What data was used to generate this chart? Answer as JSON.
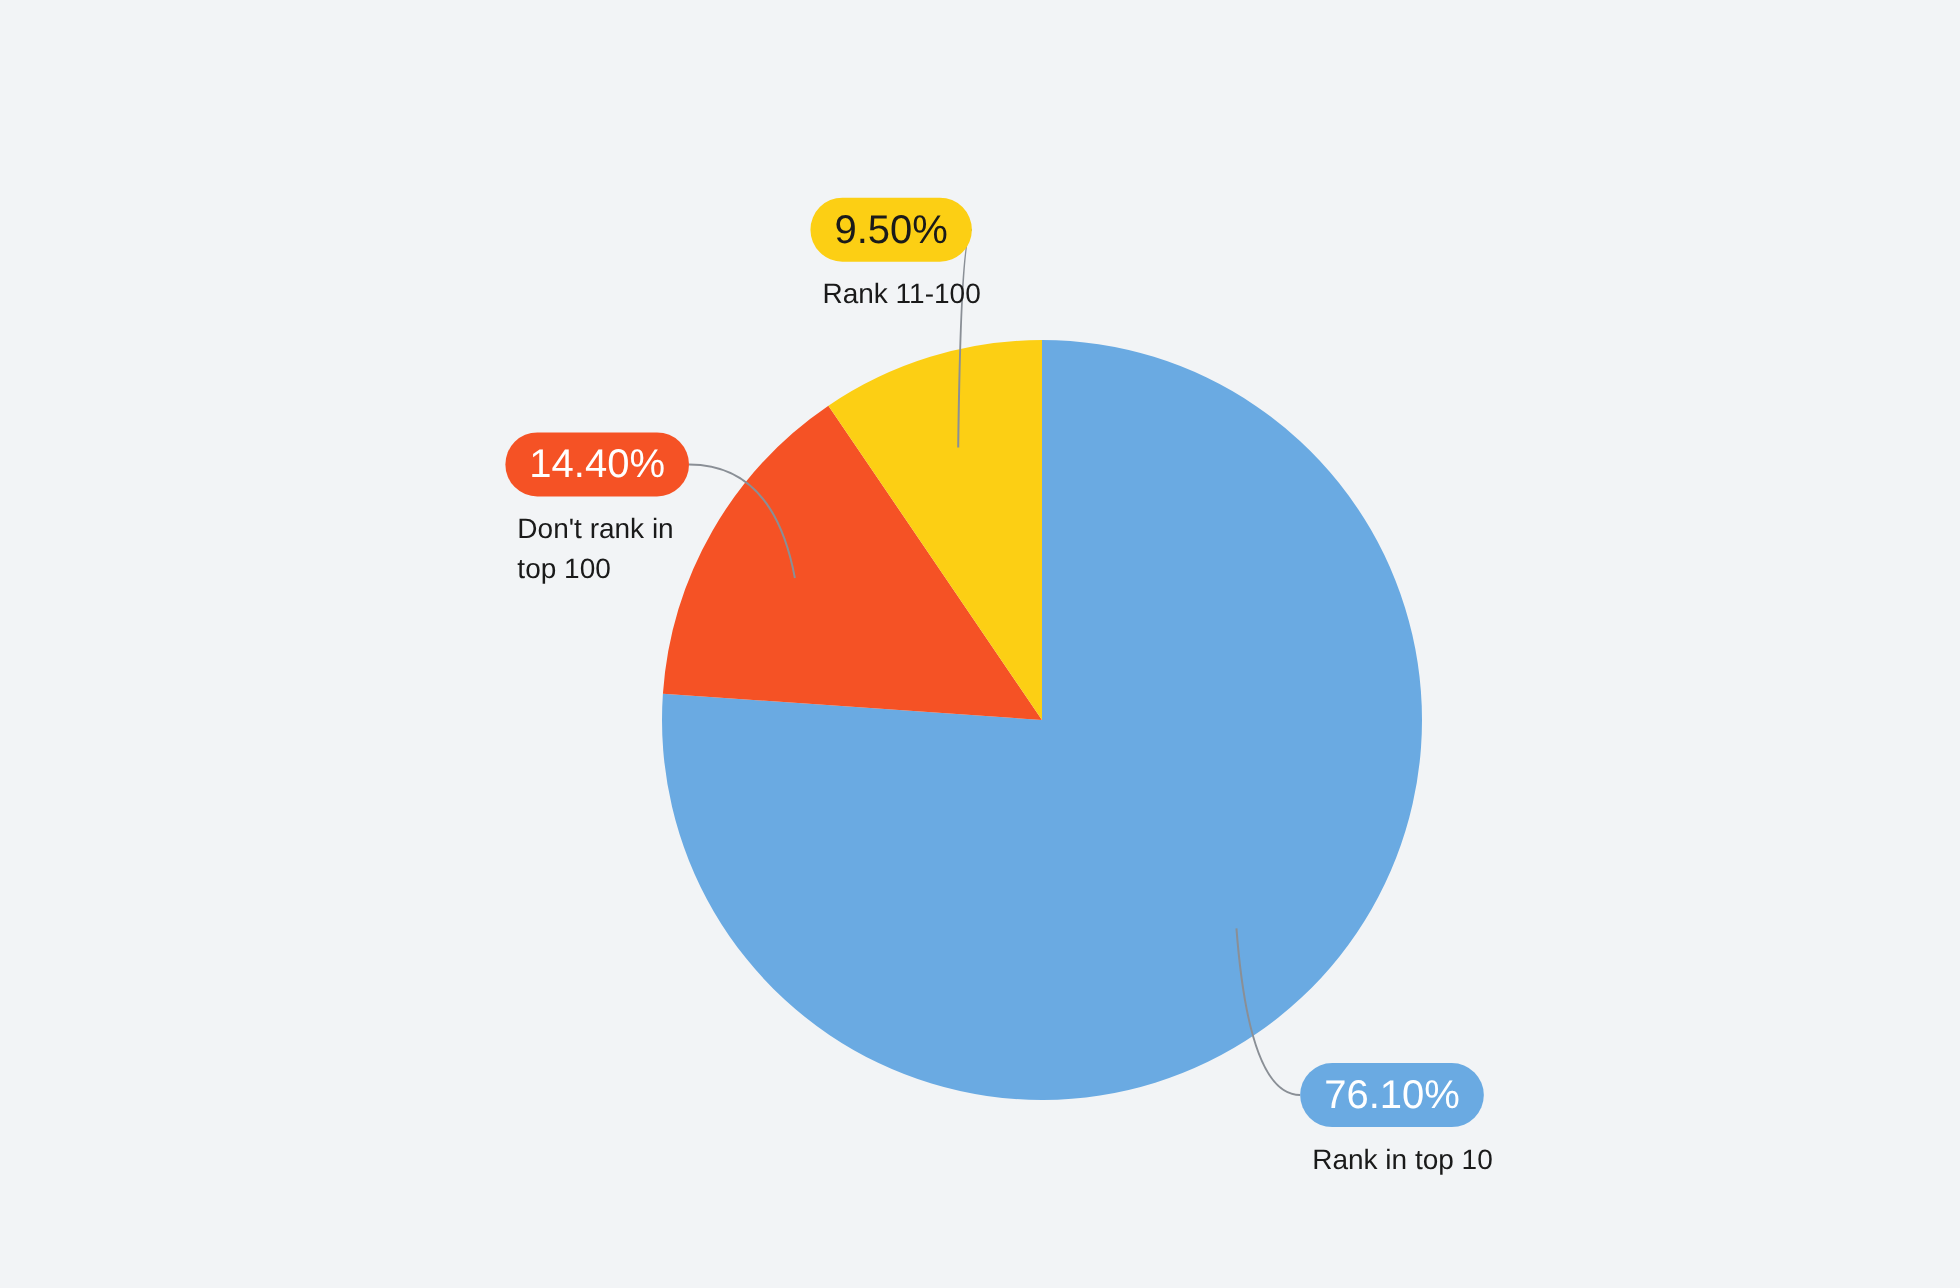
{
  "chart_data": {
    "type": "pie",
    "categories": [
      "Rank in top 10",
      "Don't rank in top 100",
      "Rank 11-100"
    ],
    "values": [
      76.1,
      14.4,
      9.5
    ],
    "colors": [
      "#6aaae2",
      "#f55225",
      "#fccf14"
    ],
    "value_labels": [
      "76.10%",
      "14.40%",
      "9.50%"
    ],
    "legend": false
  }
}
